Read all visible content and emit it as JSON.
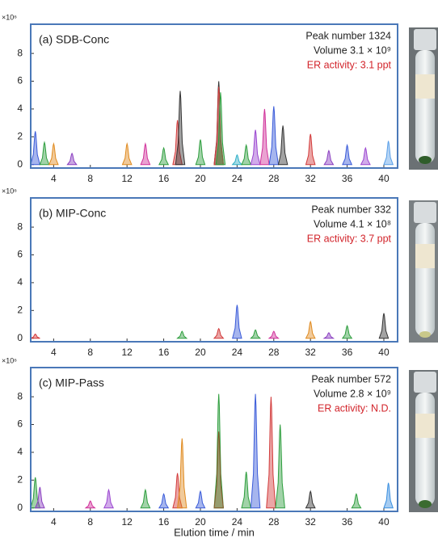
{
  "chart_data": [
    {
      "type": "area",
      "title": "(a) SDB-Conc",
      "y_scale_label": "×10⁶",
      "annotations": [
        {
          "text": "Peak number 1324",
          "color": "#222222"
        },
        {
          "text": "Volume 3.1 × 10⁹",
          "color": "#222222"
        },
        {
          "text": "ER activity: 3.1 ppt",
          "color": "#d2232a"
        }
      ],
      "x": [
        2,
        3,
        4,
        6,
        12,
        14,
        16,
        17.5,
        17.8,
        20,
        22,
        22,
        22.2,
        24,
        25,
        26,
        27,
        28,
        29,
        32,
        34,
        36,
        38,
        40.5
      ],
      "values": [
        2.4,
        1.6,
        1.5,
        0.8,
        1.5,
        1.5,
        1.2,
        3.2,
        5.3,
        1.8,
        6,
        5.6,
        5.2,
        0.7,
        1.4,
        2.5,
        4,
        4.2,
        2.8,
        2.2,
        1,
        1.4,
        1.2,
        1.7
      ],
      "colors": [
        "#3a5bd9",
        "#2e9e3e",
        "#e08a1e",
        "#8a3fc0",
        "#e08a1e",
        "#d0309a",
        "#2e9e3e",
        "#d23a3a",
        "#333333",
        "#2e9e3e",
        "#333333",
        "#d23a3a",
        "#2e9e3e",
        "#30b0c8",
        "#2e9e3e",
        "#9a45d0",
        "#d0309a",
        "#3a5bd9",
        "#333333",
        "#d23a3a",
        "#8a3fc0",
        "#3a5bd9",
        "#9a45d0",
        "#5aa0e8"
      ],
      "xlim": [
        1.5,
        41.5
      ],
      "ylim": [
        -0.25,
        10.1
      ],
      "xticks": [
        4,
        8,
        12,
        16,
        20,
        24,
        28,
        32,
        36,
        40
      ],
      "yticks": [
        0,
        2,
        4,
        6,
        8
      ]
    },
    {
      "type": "area",
      "title": "(b) MIP-Conc",
      "y_scale_label": "×10⁶",
      "annotations": [
        {
          "text": "Peak number 332",
          "color": "#222222"
        },
        {
          "text": "Volume 4.1 × 10⁸",
          "color": "#222222"
        },
        {
          "text": "ER activity: 3.7 ppt",
          "color": "#d2232a"
        }
      ],
      "x": [
        2,
        18,
        22,
        24,
        26,
        28,
        32,
        34,
        36,
        40
      ],
      "values": [
        0.3,
        0.5,
        0.7,
        2.4,
        0.6,
        0.5,
        1.2,
        0.4,
        0.9,
        1.8
      ],
      "colors": [
        "#d23a3a",
        "#2e9e3e",
        "#d23a3a",
        "#3a5bd9",
        "#2e9e3e",
        "#d0309a",
        "#e08a1e",
        "#8a3fc0",
        "#2e9e3e",
        "#333333"
      ],
      "xlim": [
        1.5,
        41.5
      ],
      "ylim": [
        -0.25,
        10.1
      ],
      "xticks": [
        4,
        8,
        12,
        16,
        20,
        24,
        28,
        32,
        36,
        40
      ],
      "yticks": [
        0,
        2,
        4,
        6,
        8
      ]
    },
    {
      "type": "area",
      "title": "(c) MIP-Pass",
      "y_scale_label": "×10⁶",
      "xlabel": "Elution time / min",
      "annotations": [
        {
          "text": "Peak number 572",
          "color": "#222222"
        },
        {
          "text": "Volume 2.8 × 10⁹",
          "color": "#222222"
        },
        {
          "text": "ER activity: N.D.",
          "color": "#d2232a"
        }
      ],
      "x": [
        2,
        2.5,
        8,
        10,
        14,
        16,
        17.5,
        18,
        20,
        22,
        22,
        25,
        26,
        27.7,
        28.7,
        32,
        37,
        40.5
      ],
      "values": [
        2.2,
        1.5,
        0.5,
        1.3,
        1.3,
        1,
        2.5,
        5,
        1.2,
        8.2,
        5.5,
        2.6,
        8.2,
        8,
        6,
        1.2,
        1,
        1.8
      ],
      "colors": [
        "#2e9e3e",
        "#8a3fc0",
        "#d0309a",
        "#9a45d0",
        "#2e9e3e",
        "#3a5bd9",
        "#d23a3a",
        "#e08a1e",
        "#3a5bd9",
        "#2e9e3e",
        "#8b5a2b",
        "#2e9e3e",
        "#3a5bd9",
        "#d23a3a",
        "#2e9e3e",
        "#333333",
        "#2e9e3e",
        "#3a8fe0"
      ],
      "xlim": [
        1.5,
        41.5
      ],
      "ylim": [
        -0.25,
        10.1
      ],
      "xticks": [
        4,
        8,
        12,
        16,
        20,
        24,
        28,
        32,
        36,
        40
      ],
      "yticks": [
        0,
        2,
        4,
        6,
        8
      ]
    }
  ]
}
